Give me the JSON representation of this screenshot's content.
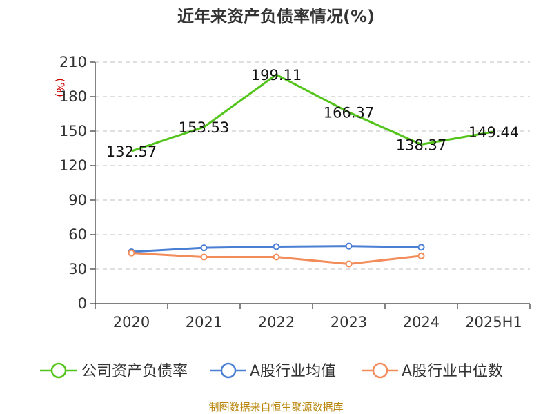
{
  "chart_data": {
    "type": "line",
    "title": "近年来资产负债率情况(%)",
    "ylabel": "(%)",
    "xlabel": "",
    "categories": [
      "2020",
      "2021",
      "2022",
      "2023",
      "2024",
      "2025H1"
    ],
    "ylim": [
      0,
      210
    ],
    "yticks": [
      0,
      30,
      60,
      90,
      120,
      150,
      180,
      210
    ],
    "grid": true,
    "legend_position": "bottom",
    "series": [
      {
        "name": "公司资产负债率",
        "color": "#52c41a",
        "values": [
          132.57,
          153.53,
          199.11,
          166.37,
          138.37,
          149.44
        ],
        "labels": [
          "132.57",
          "153.53",
          "199.11",
          "166.37",
          "138.37",
          "149.44"
        ],
        "markers": false
      },
      {
        "name": "A股行业均值",
        "color": "#4a7fd4",
        "values": [
          45,
          48.5,
          49.5,
          50,
          49,
          null
        ],
        "markers": true
      },
      {
        "name": "A股行业中位数",
        "color": "#f28c5a",
        "values": [
          44,
          40.5,
          40.5,
          34.5,
          41.5,
          null
        ],
        "markers": true
      }
    ]
  },
  "source": "制图数据来自恒生聚源数据库"
}
